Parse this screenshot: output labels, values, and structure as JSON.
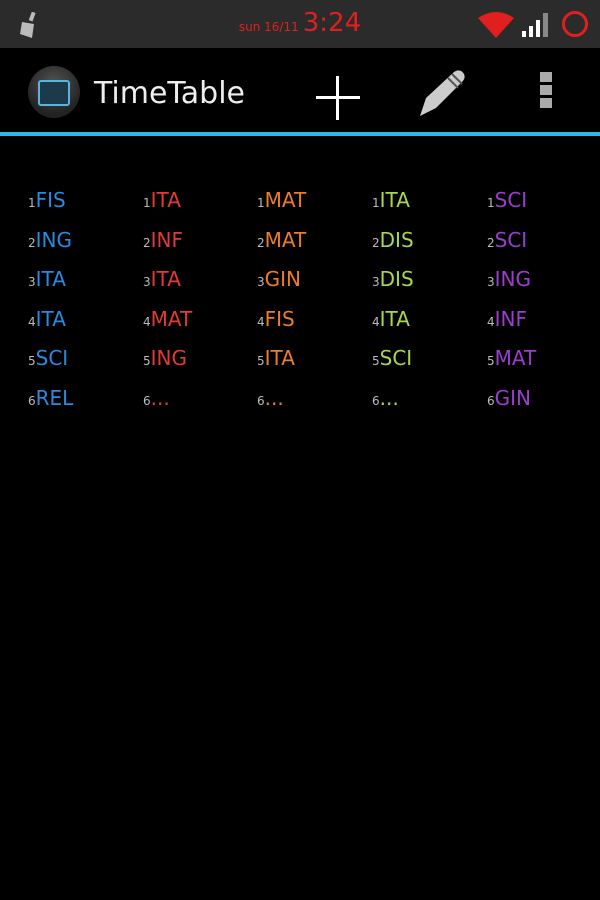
{
  "status_bar": {
    "date": "sun 16/11",
    "time": "3:24",
    "icons": [
      "cleaner-icon",
      "wifi-icon",
      "signal-icon",
      "battery-ring-icon"
    ]
  },
  "action_bar": {
    "title": "TimeTable",
    "icons": [
      "app-icon",
      "add-icon",
      "edit-pencil-icon",
      "overflow-menu-icon"
    ],
    "accent": "#33b5e5"
  },
  "days": [
    {
      "color": "#2a8ae0",
      "slots": [
        {
          "n": "1",
          "s": "FIS"
        },
        {
          "n": "2",
          "s": "ING"
        },
        {
          "n": "3",
          "s": "ITA"
        },
        {
          "n": "4",
          "s": "ITA"
        },
        {
          "n": "5",
          "s": "SCI"
        },
        {
          "n": "6",
          "s": "REL"
        }
      ]
    },
    {
      "color": "#e23a36",
      "slots": [
        {
          "n": "1",
          "s": "ITA"
        },
        {
          "n": "2",
          "s": "INF"
        },
        {
          "n": "3",
          "s": "ITA"
        },
        {
          "n": "4",
          "s": "MAT"
        },
        {
          "n": "5",
          "s": "ING"
        },
        {
          "n": "6",
          "s": "..."
        }
      ]
    },
    {
      "color": "#ee7d2a",
      "slots": [
        {
          "n": "1",
          "s": "MAT"
        },
        {
          "n": "2",
          "s": "MAT"
        },
        {
          "n": "3",
          "s": "GIN"
        },
        {
          "n": "4",
          "s": "FIS"
        },
        {
          "n": "5",
          "s": "ITA"
        },
        {
          "n": "6",
          "s": "..."
        }
      ]
    },
    {
      "color": "#a9d84c",
      "slots": [
        {
          "n": "1",
          "s": "ITA"
        },
        {
          "n": "2",
          "s": "DIS"
        },
        {
          "n": "3",
          "s": "DIS"
        },
        {
          "n": "4",
          "s": "ITA"
        },
        {
          "n": "5",
          "s": "SCI"
        },
        {
          "n": "6",
          "s": "..."
        }
      ]
    },
    {
      "color": "#9b3dce",
      "slots": [
        {
          "n": "1",
          "s": "SCI"
        },
        {
          "n": "2",
          "s": "SCI"
        },
        {
          "n": "3",
          "s": "ING"
        },
        {
          "n": "4",
          "s": "INF"
        },
        {
          "n": "5",
          "s": "MAT"
        },
        {
          "n": "6",
          "s": "GIN"
        }
      ]
    }
  ]
}
